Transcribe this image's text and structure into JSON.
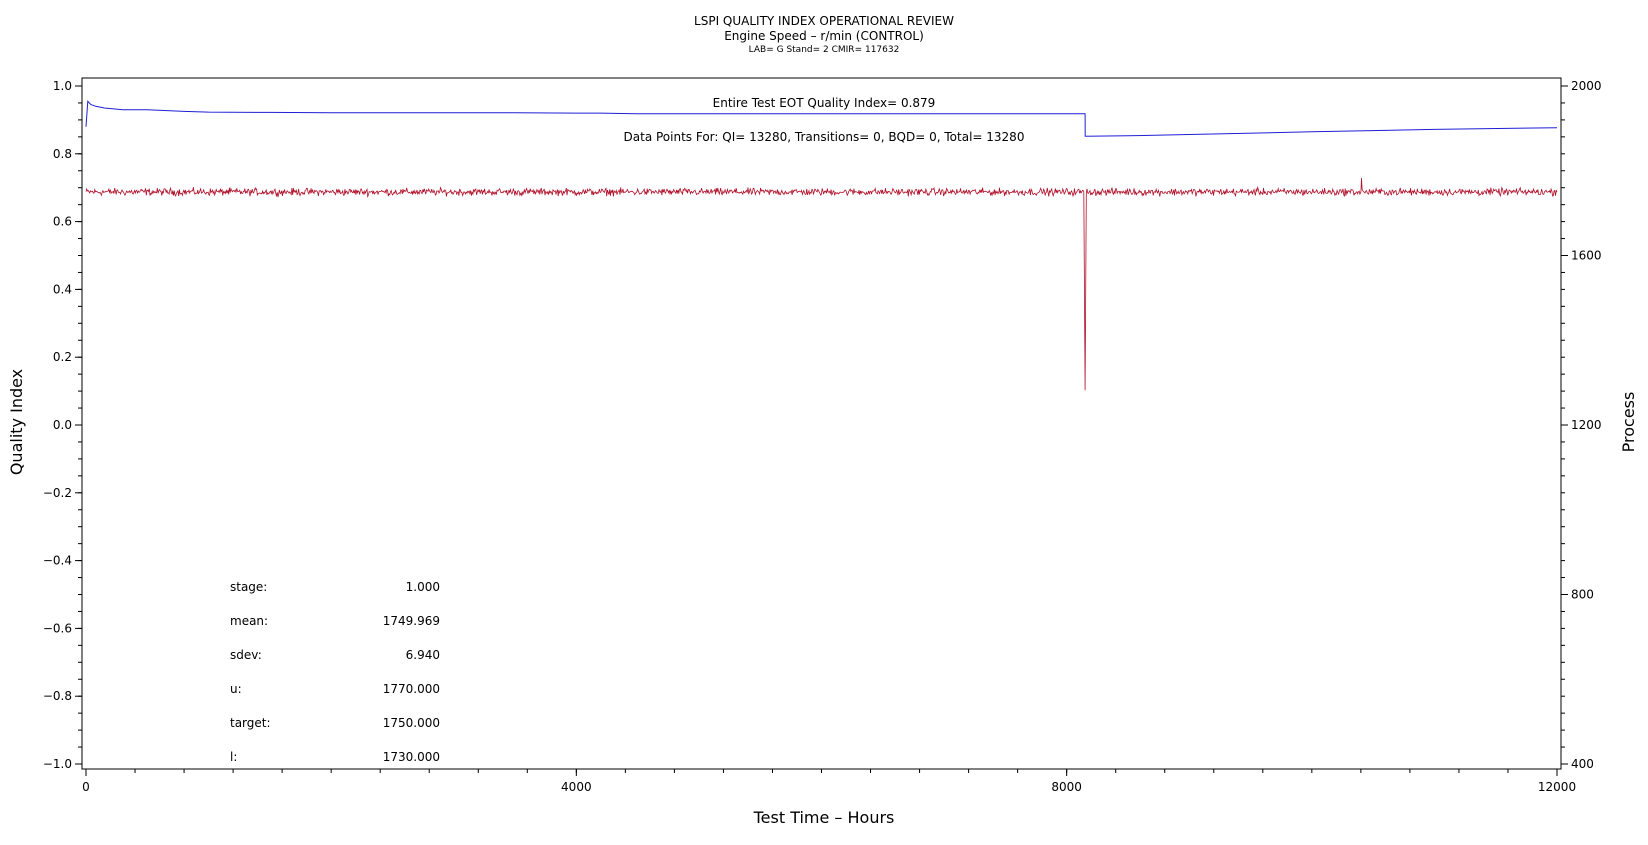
{
  "chart_data": {
    "type": "line",
    "title": "LSPI QUALITY INDEX OPERATIONAL REVIEW",
    "subtitle": "Engine Speed – r/min (CONTROL)",
    "subtitle2": "LAB= G Stand= 2 CMIR= 117632",
    "xlabel": "Test Time – Hours",
    "ylabel_left": "Quality Index",
    "ylabel_right": "Process",
    "xlim": [
      0,
      12000
    ],
    "ylim_left": [
      -1.0,
      1.0
    ],
    "ylim_right": [
      400,
      2000
    ],
    "x_ticks": [
      "0",
      "4000",
      "8000",
      "12000"
    ],
    "y_left_ticks": [
      "1.0",
      "0.8",
      "0.6",
      "0.4",
      "0.2",
      "0.0",
      "−0.2",
      "−0.4",
      "−0.6",
      "−0.8",
      "−1.0"
    ],
    "y_right_ticks": [
      "2000",
      "1600",
      "1200",
      "800",
      "400"
    ],
    "grid": false,
    "annotations": {
      "eot": "Entire Test EOT Quality Index=   0.879",
      "points": "Data Points For: QI= 13280, Transitions=     0, BQD=     0, Total= 13280"
    },
    "stats": [
      {
        "label": "stage:",
        "value": "1.000"
      },
      {
        "label": "mean:",
        "value": "1749.969"
      },
      {
        "label": "sdev:",
        "value": "6.940"
      },
      {
        "label": "u:",
        "value": "1770.000"
      },
      {
        "label": "target:",
        "value": "1750.000"
      },
      {
        "label": "l:",
        "value": "1730.000"
      }
    ],
    "series": [
      {
        "axis": "left",
        "color": "#1f1fd6",
        "x": [
          0,
          15,
          40,
          80,
          150,
          300,
          500,
          800,
          1000,
          1500,
          2000,
          3000,
          3500,
          4000,
          4200,
          4500,
          5000,
          6000,
          7000,
          8000,
          8150,
          8151,
          8500,
          9000,
          10000,
          11000,
          12000
        ],
        "values": [
          0.88,
          0.955,
          0.945,
          0.94,
          0.935,
          0.93,
          0.93,
          0.925,
          0.923,
          0.922,
          0.921,
          0.921,
          0.921,
          0.92,
          0.92,
          0.918,
          0.918,
          0.918,
          0.918,
          0.918,
          0.918,
          0.852,
          0.853,
          0.857,
          0.865,
          0.872,
          0.877
        ]
      },
      {
        "axis": "right",
        "color": "#b0102a",
        "x": [
          0,
          8140,
          8150,
          8160,
          10400,
          10405,
          10410,
          12000
        ],
        "values": [
          1750,
          1750,
          1282,
          1750,
          1750,
          1783,
          1750,
          1750
        ],
        "noise_sdev": 6.94
      }
    ]
  }
}
